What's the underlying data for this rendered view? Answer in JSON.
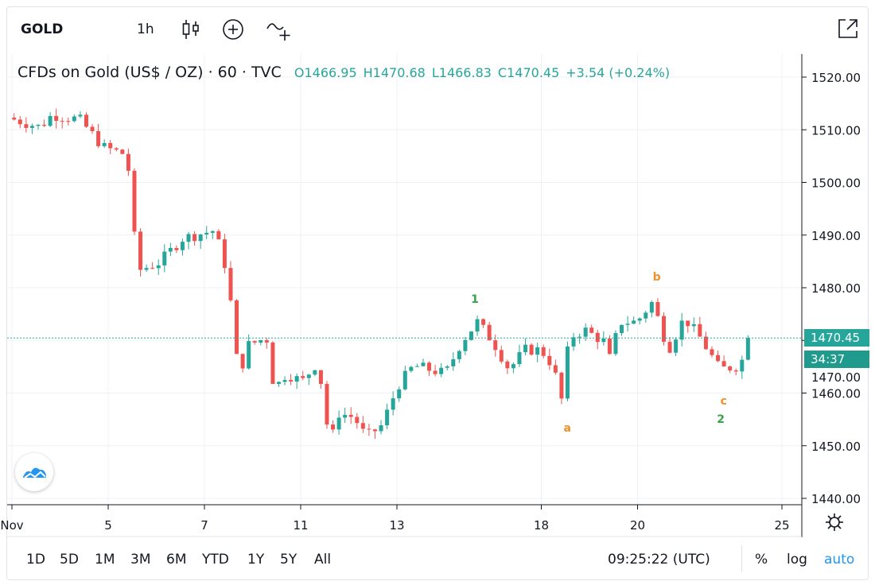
{
  "toolbar": {
    "symbol": "GOLD",
    "interval": "1h",
    "icons": [
      "candles-icon",
      "compare-plus-icon",
      "indicators-icon",
      "popout-icon"
    ]
  },
  "legend": {
    "title": "CFDs on Gold (US$ / OZ) · 60 · TVC",
    "open": "O1466.95",
    "high": "H1470.68",
    "low": "L1466.83",
    "close": "C1470.45",
    "change": "+3.54 (+0.24%)"
  },
  "price_labels": {
    "last": "1470.45",
    "countdown": "34:37"
  },
  "bottom": {
    "ranges": [
      "1D",
      "5D",
      "1M",
      "3M",
      "6M",
      "YTD",
      "1Y",
      "5Y",
      "All"
    ],
    "time": "09:25:22 (UTC)",
    "percent": "%",
    "log": "log",
    "auto": "auto"
  },
  "colors": {
    "up": "#26a69a",
    "down": "#ef5350",
    "last_price_bg": "#26a69a",
    "countdown_bg": "#1f9a8c",
    "wave_green": "#3aa34a",
    "wave_orange": "#f0902a",
    "auto": "#2196f3"
  },
  "chart_data": {
    "type": "candlestick",
    "title": "CFDs on Gold (US$ / OZ) · 60 · TVC",
    "x_unit": "trading days from Nov 4",
    "ylim": [
      1440,
      1520
    ],
    "y_ticks": [
      "1520.00",
      "1510.00",
      "1500.00",
      "1490.00",
      "1480.00",
      "1470.00",
      "1460.00",
      "1450.00",
      "1440.00"
    ],
    "y_tick_values": [
      1520,
      1510,
      1500,
      1490,
      1480,
      1470,
      1460,
      1450,
      1440
    ],
    "x_ticks": [
      {
        "label": "Nov",
        "t": 0
      },
      {
        "label": "5",
        "t": 2
      },
      {
        "label": "7",
        "t": 4
      },
      {
        "label": "11",
        "t": 6
      },
      {
        "label": "13",
        "t": 8
      },
      {
        "label": "18",
        "t": 11
      },
      {
        "label": "20",
        "t": 13
      },
      {
        "label": "25",
        "t": 16
      }
    ],
    "close_path": [
      [
        -0.08,
        1512.3
      ],
      [
        0.58,
        1510.5
      ],
      [
        0.83,
        1512.8
      ],
      [
        1.4,
        1512.0
      ],
      [
        1.9,
        1506.7
      ],
      [
        2.4,
        1505.2
      ],
      [
        2.48,
        1494.0
      ],
      [
        2.64,
        1483.3
      ],
      [
        3.06,
        1484.8
      ],
      [
        3.55,
        1489.4
      ],
      [
        4.21,
        1490.9
      ],
      [
        4.46,
        1483.3
      ],
      [
        4.63,
        1471.2
      ],
      [
        4.71,
        1462.2
      ],
      [
        4.88,
        1469.0
      ],
      [
        5.29,
        1470.5
      ],
      [
        5.45,
        1460.7
      ],
      [
        5.7,
        1463.7
      ],
      [
        6.03,
        1462.2
      ],
      [
        6.36,
        1466.0
      ],
      [
        6.61,
        1450.0
      ],
      [
        6.78,
        1456.2
      ],
      [
        7.11,
        1455.4
      ],
      [
        7.36,
        1451.6
      ],
      [
        7.69,
        1453.9
      ],
      [
        8.02,
        1461.4
      ],
      [
        8.35,
        1465.2
      ],
      [
        9.01,
        1463.7
      ],
      [
        9.34,
        1469.7
      ],
      [
        9.67,
        1473.5
      ],
      [
        10.0,
        1469.7
      ],
      [
        10.33,
        1464.5
      ],
      [
        10.66,
        1468.2
      ],
      [
        10.99,
        1468.2
      ],
      [
        11.24,
        1465.2
      ],
      [
        11.45,
        1457.7
      ],
      [
        11.57,
        1470.5
      ],
      [
        11.9,
        1472.0
      ],
      [
        12.31,
        1469.7
      ],
      [
        12.4,
        1466.0
      ],
      [
        12.64,
        1473.5
      ],
      [
        12.98,
        1473.5
      ],
      [
        13.31,
        1477.3
      ],
      [
        13.64,
        1468.2
      ],
      [
        13.97,
        1474.3
      ],
      [
        14.3,
        1470.5
      ],
      [
        14.71,
        1464.5
      ],
      [
        15.12,
        1465.2
      ],
      [
        15.37,
        1470.45
      ]
    ],
    "last_price": 1470.45,
    "annotations": [
      {
        "text": "1",
        "t": 9.62,
        "price": 1477.9,
        "color": "green"
      },
      {
        "text": "a",
        "t": 11.54,
        "price": 1453.4,
        "color": "orange"
      },
      {
        "text": "b",
        "t": 13.4,
        "price": 1482.1,
        "color": "orange"
      },
      {
        "text": "c",
        "t": 14.79,
        "price": 1458.6,
        "color": "orange"
      },
      {
        "text": "2",
        "t": 14.73,
        "price": 1455.1,
        "color": "green"
      }
    ]
  }
}
